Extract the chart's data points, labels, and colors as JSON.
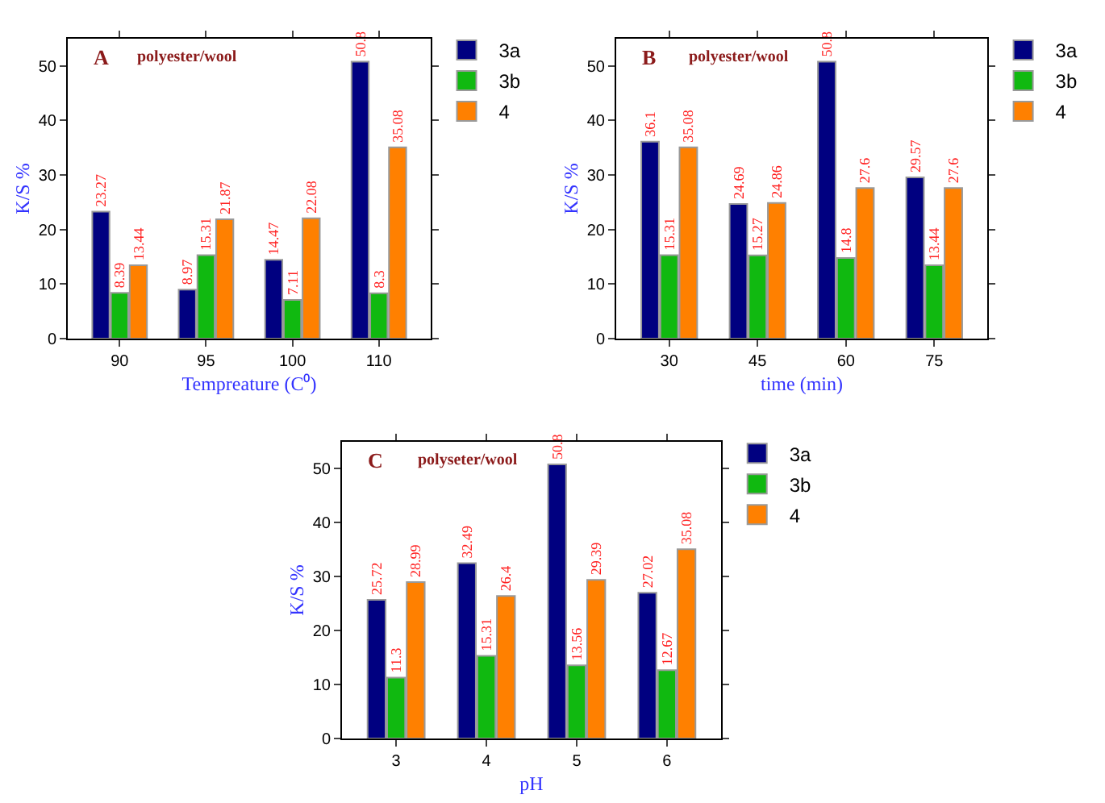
{
  "chart_data": [
    {
      "type": "bar",
      "xlabel": "Tempreature (C⁰)",
      "ylabel": "K/S %",
      "annotations": [
        "A",
        "polyester/wool"
      ],
      "categories": [
        "90",
        "95",
        "100",
        "110"
      ],
      "ylim": [
        0,
        55
      ],
      "yticks": [
        0,
        10,
        20,
        30,
        40,
        50
      ],
      "data_labels": true,
      "legend": "top right",
      "grid": false,
      "series": [
        {
          "name": "3a",
          "color": "#000080",
          "values": [
            23.27,
            8.97,
            14.47,
            50.8
          ]
        },
        {
          "name": "3b",
          "color": "#10b910",
          "values": [
            8.39,
            15.31,
            7.11,
            8.3
          ]
        },
        {
          "name": "4",
          "color": "#ff8000",
          "values": [
            13.44,
            21.87,
            22.08,
            35.08
          ]
        }
      ]
    },
    {
      "type": "bar",
      "xlabel": "time (min)",
      "ylabel": "K/S %",
      "annotations": [
        "B",
        "polyester/wool"
      ],
      "categories": [
        "30",
        "45",
        "60",
        "75"
      ],
      "ylim": [
        0,
        55
      ],
      "yticks": [
        0,
        10,
        20,
        30,
        40,
        50
      ],
      "data_labels": true,
      "legend": "top right",
      "grid": false,
      "series": [
        {
          "name": "3a",
          "color": "#000080",
          "values": [
            36.1,
            24.69,
            50.8,
            29.57
          ]
        },
        {
          "name": "3b",
          "color": "#10b910",
          "values": [
            15.31,
            15.27,
            14.8,
            13.44
          ]
        },
        {
          "name": "4",
          "color": "#ff8000",
          "values": [
            35.08,
            24.86,
            27.6,
            27.6
          ]
        }
      ]
    },
    {
      "type": "bar",
      "xlabel": "pH",
      "ylabel": "K/S %",
      "annotations": [
        "C",
        "polyseter/wool"
      ],
      "categories": [
        "3",
        "4",
        "5",
        "6"
      ],
      "ylim": [
        0,
        55
      ],
      "yticks": [
        0,
        10,
        20,
        30,
        40,
        50
      ],
      "data_labels": true,
      "legend": "top right",
      "grid": false,
      "series": [
        {
          "name": "3a",
          "color": "#000080",
          "values": [
            25.72,
            32.49,
            50.8,
            27.02
          ]
        },
        {
          "name": "3b",
          "color": "#10b910",
          "values": [
            11.3,
            15.31,
            13.56,
            12.67
          ]
        },
        {
          "name": "4",
          "color": "#ff8000",
          "values": [
            28.99,
            26.4,
            29.39,
            35.08
          ]
        }
      ]
    }
  ]
}
